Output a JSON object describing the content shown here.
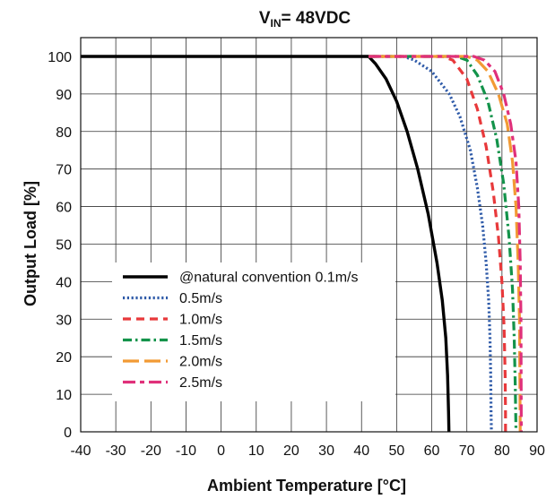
{
  "chart_data": {
    "type": "line",
    "title": {
      "main": "V",
      "subscript": "IN",
      "rest": "= 48VDC"
    },
    "xlabel": "Ambient Temperature [°C]",
    "ylabel": "Output Load [%]",
    "xlim": [
      -40,
      90
    ],
    "ylim": [
      0,
      105
    ],
    "x_ticks": [
      -40,
      -30,
      -20,
      -10,
      0,
      10,
      20,
      30,
      40,
      50,
      60,
      70,
      80,
      90
    ],
    "y_ticks": [
      0,
      10,
      20,
      30,
      40,
      50,
      60,
      70,
      80,
      90,
      100
    ],
    "grid": true,
    "legend_position": "lower-left",
    "series": [
      {
        "name": "@natural convention 0.1m/s",
        "color": "#000000",
        "dash": "solid",
        "points": [
          [
            -40,
            100
          ],
          [
            42,
            100
          ],
          [
            44,
            98
          ],
          [
            47,
            94
          ],
          [
            50,
            88
          ],
          [
            53,
            80
          ],
          [
            56,
            70
          ],
          [
            59,
            58
          ],
          [
            61.5,
            45
          ],
          [
            63,
            35
          ],
          [
            64,
            25
          ],
          [
            64.5,
            15
          ],
          [
            64.8,
            5
          ],
          [
            64.9,
            0
          ]
        ]
      },
      {
        "name": "0.5m/s",
        "color": "#2e5aa8",
        "dash": "dotted",
        "points": [
          [
            42,
            100
          ],
          [
            52,
            100
          ],
          [
            55,
            99
          ],
          [
            60,
            96
          ],
          [
            65,
            90
          ],
          [
            68,
            84
          ],
          [
            71,
            75
          ],
          [
            73,
            65
          ],
          [
            74.5,
            55
          ],
          [
            75.5,
            45
          ],
          [
            76.2,
            35
          ],
          [
            76.6,
            25
          ],
          [
            76.8,
            15
          ],
          [
            76.9,
            5
          ],
          [
            77,
            0
          ]
        ]
      },
      {
        "name": "1.0m/s",
        "color": "#e8393b",
        "dash": "dashed",
        "points": [
          [
            42,
            100
          ],
          [
            63,
            100
          ],
          [
            66,
            99
          ],
          [
            70,
            94
          ],
          [
            73,
            86
          ],
          [
            75.5,
            76
          ],
          [
            77.5,
            64
          ],
          [
            79,
            52
          ],
          [
            80,
            40
          ],
          [
            80.6,
            28
          ],
          [
            80.9,
            15
          ],
          [
            81,
            5
          ],
          [
            81,
            0
          ]
        ]
      },
      {
        "name": "1.5m/s",
        "color": "#13934a",
        "dash": "dashdot",
        "points": [
          [
            42,
            100
          ],
          [
            67,
            100
          ],
          [
            70,
            99
          ],
          [
            73,
            95
          ],
          [
            76,
            88
          ],
          [
            78.5,
            78
          ],
          [
            80.5,
            66
          ],
          [
            82,
            52
          ],
          [
            83,
            38
          ],
          [
            83.5,
            25
          ],
          [
            83.8,
            12
          ],
          [
            84,
            0
          ]
        ]
      },
      {
        "name": "2.0m/s",
        "color": "#f29a34",
        "dash": "longdash",
        "points": [
          [
            42,
            100
          ],
          [
            70,
            100
          ],
          [
            73,
            99
          ],
          [
            76,
            96
          ],
          [
            79,
            90
          ],
          [
            81.5,
            82
          ],
          [
            83,
            72
          ],
          [
            84,
            60
          ],
          [
            84.6,
            45
          ],
          [
            85,
            30
          ],
          [
            85.1,
            15
          ],
          [
            85.2,
            0
          ]
        ]
      },
      {
        "name": "2.5m/s",
        "color": "#e0307a",
        "dash": "dashdash",
        "points": [
          [
            42,
            100
          ],
          [
            72,
            100
          ],
          [
            75,
            99
          ],
          [
            78,
            96
          ],
          [
            80.5,
            90
          ],
          [
            82.5,
            82
          ],
          [
            84,
            72
          ],
          [
            84.8,
            60
          ],
          [
            85.2,
            45
          ],
          [
            85.4,
            30
          ],
          [
            85.5,
            0
          ]
        ]
      }
    ]
  }
}
